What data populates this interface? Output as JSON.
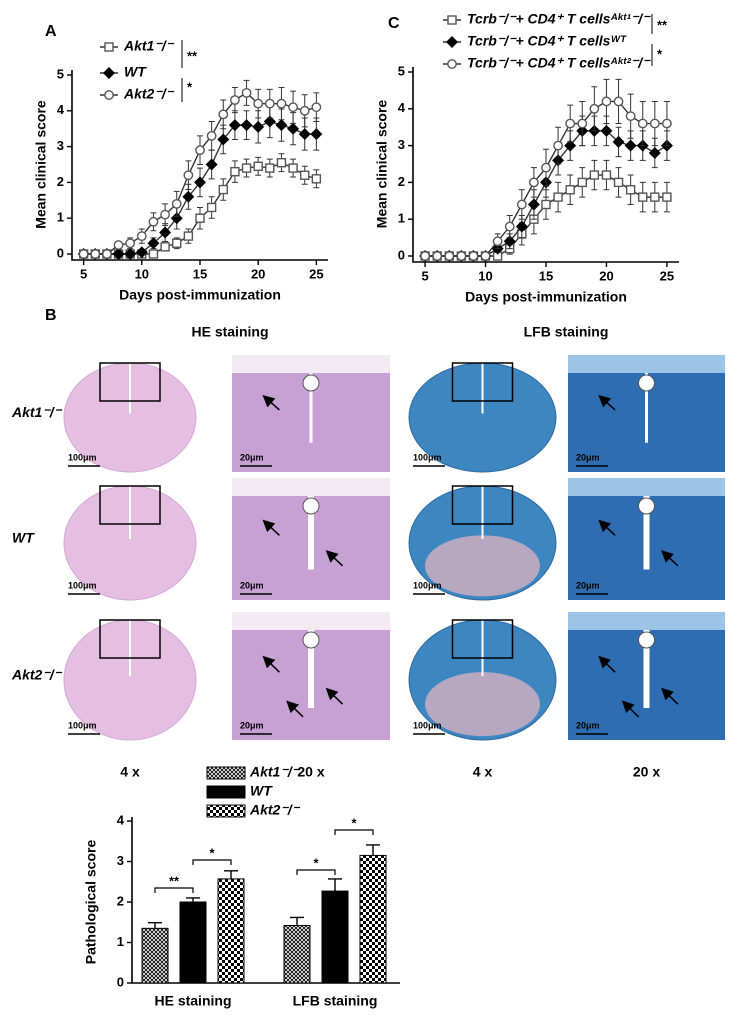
{
  "chart_data": [
    {
      "type": "line",
      "panel": "A",
      "x_label": "Days  post-immunization",
      "y_label": "Mean clinical score",
      "x": [
        5,
        6,
        7,
        8,
        9,
        10,
        11,
        12,
        13,
        14,
        15,
        16,
        17,
        18,
        19,
        20,
        21,
        22,
        23,
        24,
        25
      ],
      "xlim": [
        4,
        26
      ],
      "xticks": [
        5,
        10,
        15,
        20,
        25
      ],
      "ylim": [
        0,
        5
      ],
      "yticks": [
        0,
        1,
        2,
        3,
        4,
        5
      ],
      "series": [
        {
          "name": "Akt1⁻/⁻",
          "color": "#555555",
          "marker": "square",
          "marker_fill": "#ffffff",
          "values": [
            0,
            0,
            0,
            0,
            0,
            0,
            0,
            0.2,
            0.3,
            0.5,
            1.0,
            1.3,
            1.8,
            2.3,
            2.4,
            2.45,
            2.4,
            2.55,
            2.4,
            2.2,
            2.1
          ],
          "errors": [
            0,
            0,
            0,
            0,
            0,
            0,
            0,
            0.1,
            0.15,
            0.2,
            0.3,
            0.3,
            0.3,
            0.3,
            0.25,
            0.25,
            0.25,
            0.25,
            0.25,
            0.25,
            0.25
          ]
        },
        {
          "name": "WT",
          "color": "#000000",
          "marker": "diamond",
          "marker_fill": "#000000",
          "values": [
            0,
            0,
            0,
            0,
            0,
            0.05,
            0.3,
            0.6,
            1.0,
            1.6,
            2.0,
            2.5,
            3.2,
            3.6,
            3.6,
            3.55,
            3.7,
            3.6,
            3.5,
            3.35,
            3.35
          ],
          "errors": [
            0,
            0,
            0,
            0,
            0,
            0.05,
            0.15,
            0.25,
            0.3,
            0.35,
            0.4,
            0.4,
            0.4,
            0.4,
            0.4,
            0.45,
            0.45,
            0.45,
            0.45,
            0.45,
            0.45
          ]
        },
        {
          "name": "Akt2⁻/⁻",
          "color": "#555555",
          "marker": "circle",
          "marker_fill": "#ffffff",
          "values": [
            0,
            0,
            0,
            0.25,
            0.3,
            0.5,
            0.9,
            1.1,
            1.4,
            2.2,
            2.9,
            3.3,
            3.9,
            4.3,
            4.5,
            4.2,
            4.2,
            4.2,
            4.1,
            4.0,
            4.1
          ],
          "errors": [
            0,
            0,
            0,
            0.1,
            0.15,
            0.2,
            0.25,
            0.3,
            0.35,
            0.4,
            0.4,
            0.4,
            0.4,
            0.35,
            0.35,
            0.4,
            0.4,
            0.45,
            0.45,
            0.45,
            0.4
          ]
        }
      ],
      "annotations": [
        "**",
        "*"
      ]
    },
    {
      "type": "line",
      "panel": "C",
      "x_label": "Days  post-immunization",
      "y_label": "Mean clinical score",
      "x": [
        5,
        6,
        7,
        8,
        9,
        10,
        11,
        12,
        13,
        14,
        15,
        16,
        17,
        18,
        19,
        20,
        21,
        22,
        23,
        24,
        25
      ],
      "xlim": [
        4,
        26
      ],
      "xticks": [
        5,
        10,
        15,
        20,
        25
      ],
      "ylim": [
        0,
        5
      ],
      "yticks": [
        0,
        1,
        2,
        3,
        4,
        5
      ],
      "series": [
        {
          "name": "Tcrb⁻/⁻+ CD4⁺ T cellsᴬᵏᵗ¹⁻/⁻",
          "color": "#555555",
          "marker": "square",
          "marker_fill": "#ffffff",
          "values": [
            0,
            0,
            0,
            0,
            0,
            0,
            0,
            0.2,
            0.6,
            1.0,
            1.4,
            1.6,
            1.8,
            2.0,
            2.2,
            2.2,
            2.0,
            1.8,
            1.6,
            1.6,
            1.6
          ],
          "errors": [
            0,
            0,
            0,
            0,
            0,
            0,
            0,
            0.15,
            0.3,
            0.4,
            0.4,
            0.4,
            0.4,
            0.4,
            0.4,
            0.4,
            0.4,
            0.4,
            0.4,
            0.4,
            0.4
          ]
        },
        {
          "name": "Tcrb⁻/⁻+ CD4⁺ T cellsᵂᵀ",
          "color": "#000000",
          "marker": "diamond",
          "marker_fill": "#000000",
          "values": [
            0,
            0,
            0,
            0,
            0,
            0,
            0.2,
            0.4,
            0.8,
            1.4,
            2.0,
            2.6,
            3.0,
            3.4,
            3.4,
            3.4,
            3.1,
            3.0,
            3.0,
            2.8,
            3.0
          ],
          "errors": [
            0,
            0,
            0,
            0,
            0,
            0,
            0.1,
            0.2,
            0.3,
            0.4,
            0.4,
            0.4,
            0.4,
            0.4,
            0.4,
            0.4,
            0.4,
            0.4,
            0.4,
            0.4,
            0.4
          ]
        },
        {
          "name": "Tcrb⁻/⁻+ CD4⁺ T cellsᴬᵏᵗ²⁻/⁻",
          "color": "#555555",
          "marker": "circle",
          "marker_fill": "#ffffff",
          "values": [
            0,
            0,
            0,
            0,
            0,
            0,
            0.4,
            0.8,
            1.4,
            2.0,
            2.4,
            3.0,
            3.6,
            3.6,
            4.0,
            4.2,
            4.2,
            3.8,
            3.6,
            3.6,
            3.6
          ],
          "errors": [
            0,
            0,
            0,
            0,
            0,
            0,
            0.2,
            0.3,
            0.4,
            0.4,
            0.5,
            0.5,
            0.5,
            0.6,
            0.6,
            0.6,
            0.6,
            0.6,
            0.6,
            0.6,
            0.6
          ]
        }
      ],
      "annotations": [
        "**",
        "*"
      ]
    },
    {
      "type": "bar",
      "y_label": "Pathological score",
      "categories": [
        "HE staining",
        "LFB staining"
      ],
      "ylim": [
        0,
        4
      ],
      "yticks": [
        0,
        1,
        2,
        3,
        4
      ],
      "series": [
        {
          "name": "Akt1⁻/⁻",
          "color": "#000000",
          "pattern": "crosshatch",
          "values": [
            1.35,
            1.42
          ],
          "errors": [
            0.14,
            0.2
          ]
        },
        {
          "name": "WT",
          "color": "#000000",
          "pattern": "solid",
          "values": [
            2.0,
            2.27
          ],
          "errors": [
            0.1,
            0.3
          ]
        },
        {
          "name": "Akt2⁻/⁻",
          "color": "#000000",
          "pattern": "checker",
          "values": [
            2.57,
            3.15
          ],
          "errors": [
            0.2,
            0.26
          ]
        }
      ],
      "annotations": [
        "**",
        "*",
        "*",
        "*"
      ]
    }
  ],
  "panel_b": {
    "label": "B",
    "headers": [
      "HE staining",
      "LFB staining"
    ],
    "row_labels": [
      "Akt1⁻/⁻",
      "WT",
      "Akt2⁻/⁻"
    ],
    "scale_bars": [
      [
        "100μm",
        "20μm",
        "100μm",
        "20μm"
      ],
      [
        "100μm",
        "20μm",
        "100μm",
        "20μm"
      ],
      [
        "100μm",
        "20μm",
        "100μm",
        "20μm"
      ]
    ],
    "magnifications": [
      "4 x",
      "20 x",
      "4 x",
      "20 x"
    ]
  }
}
